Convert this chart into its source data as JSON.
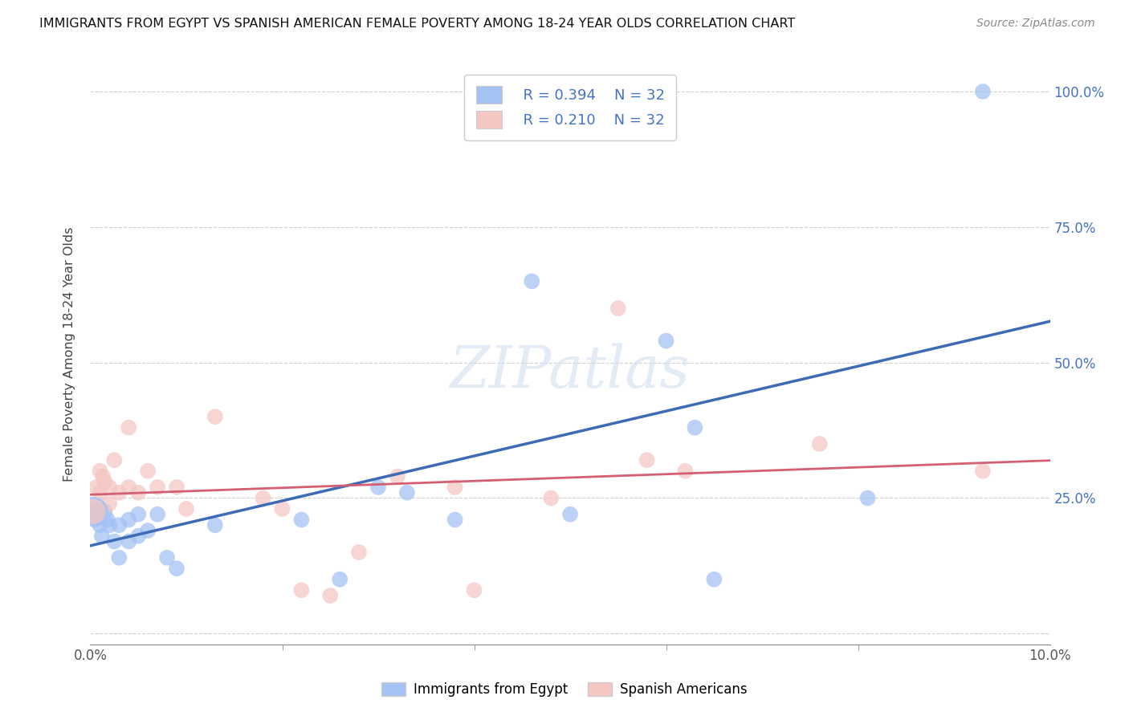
{
  "title": "IMMIGRANTS FROM EGYPT VS SPANISH AMERICAN FEMALE POVERTY AMONG 18-24 YEAR OLDS CORRELATION CHART",
  "source": "Source: ZipAtlas.com",
  "ylabel": "Female Poverty Among 18-24 Year Olds",
  "xlim": [
    0.0,
    0.1
  ],
  "ylim": [
    -0.02,
    1.05
  ],
  "ytick_vals": [
    0.0,
    0.25,
    0.5,
    0.75,
    1.0
  ],
  "legend_r_blue": "R = 0.394",
  "legend_n_blue": "N = 32",
  "legend_r_pink": "R = 0.210",
  "legend_n_pink": "N = 32",
  "blue_color": "#a4c2f4",
  "pink_color": "#f4c7c3",
  "blue_line_color": "#3d6bb5",
  "pink_line_color": "#d45f72",
  "text_blue": "#4472c4",
  "background": "#ffffff",
  "watermark": "ZIPatlas",
  "egypt_x": [
    0.0003,
    0.0005,
    0.0007,
    0.001,
    0.0012,
    0.0015,
    0.0018,
    0.002,
    0.0025,
    0.003,
    0.003,
    0.004,
    0.004,
    0.005,
    0.005,
    0.006,
    0.007,
    0.008,
    0.009,
    0.013,
    0.022,
    0.026,
    0.03,
    0.033,
    0.038,
    0.046,
    0.05,
    0.06,
    0.063,
    0.065,
    0.081,
    0.093
  ],
  "egypt_y": [
    0.225,
    0.21,
    0.225,
    0.2,
    0.18,
    0.225,
    0.21,
    0.2,
    0.17,
    0.2,
    0.14,
    0.21,
    0.17,
    0.18,
    0.22,
    0.19,
    0.22,
    0.14,
    0.12,
    0.2,
    0.21,
    0.1,
    0.27,
    0.26,
    0.21,
    0.65,
    0.22,
    0.54,
    0.38,
    0.1,
    0.25,
    1.0
  ],
  "spanish_x": [
    0.0003,
    0.0006,
    0.001,
    0.001,
    0.0013,
    0.0015,
    0.002,
    0.002,
    0.0025,
    0.003,
    0.004,
    0.004,
    0.005,
    0.006,
    0.007,
    0.009,
    0.01,
    0.013,
    0.018,
    0.02,
    0.022,
    0.025,
    0.028,
    0.032,
    0.038,
    0.04,
    0.048,
    0.055,
    0.058,
    0.062,
    0.076,
    0.093
  ],
  "spanish_y": [
    0.225,
    0.27,
    0.26,
    0.3,
    0.29,
    0.28,
    0.27,
    0.24,
    0.32,
    0.26,
    0.27,
    0.38,
    0.26,
    0.3,
    0.27,
    0.27,
    0.23,
    0.4,
    0.25,
    0.23,
    0.08,
    0.07,
    0.15,
    0.29,
    0.27,
    0.08,
    0.25,
    0.6,
    0.32,
    0.3,
    0.35,
    0.3
  ]
}
